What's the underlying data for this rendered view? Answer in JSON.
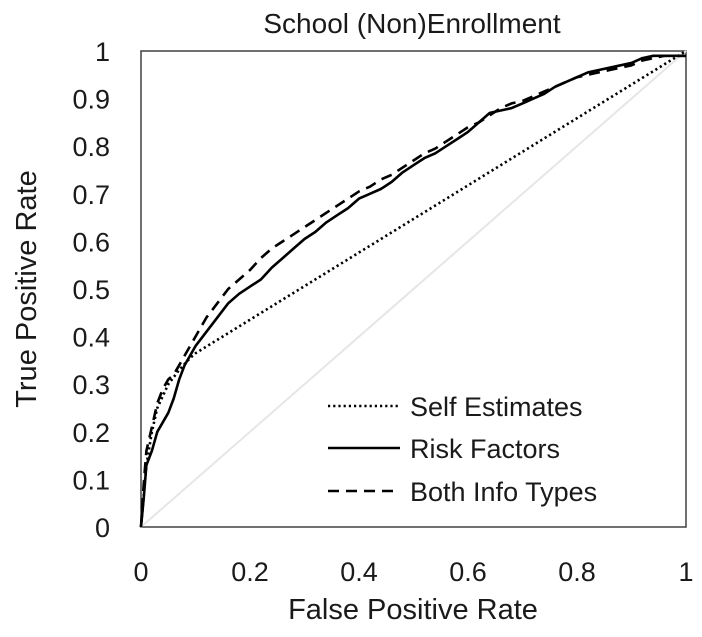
{
  "chart_data": {
    "type": "line",
    "title": "School (Non)Enrollment",
    "xlabel": "False Positive Rate",
    "ylabel": "True Positive Rate",
    "xlim": [
      0,
      1
    ],
    "ylim": [
      0,
      1
    ],
    "grid": false,
    "legend_position": "bottom-right",
    "x_ticks": [
      "0",
      "0.2",
      "0.4",
      "0.6",
      "0.8",
      "1"
    ],
    "y_ticks": [
      "0",
      "0.1",
      "0.2",
      "0.3",
      "0.4",
      "0.5",
      "0.6",
      "0.7",
      "0.8",
      "0.9",
      "1"
    ],
    "reference_line": {
      "x": [
        0,
        1
      ],
      "y": [
        0,
        1
      ],
      "color": "#e6e6e6"
    },
    "series": [
      {
        "name": "Self Estimates",
        "style": "dotted",
        "color": "#000000",
        "x": [
          0,
          0.01,
          0.02,
          0.03,
          0.05,
          0.07,
          0.09,
          0.1,
          1.0
        ],
        "y": [
          0,
          0.13,
          0.2,
          0.25,
          0.3,
          0.33,
          0.355,
          0.365,
          1.0
        ]
      },
      {
        "name": "Risk Factors",
        "style": "solid",
        "color": "#000000",
        "x": [
          0,
          0.005,
          0.01,
          0.02,
          0.03,
          0.04,
          0.05,
          0.06,
          0.07,
          0.08,
          0.09,
          0.1,
          0.12,
          0.14,
          0.16,
          0.18,
          0.2,
          0.22,
          0.24,
          0.26,
          0.28,
          0.3,
          0.32,
          0.34,
          0.36,
          0.38,
          0.4,
          0.42,
          0.44,
          0.46,
          0.48,
          0.5,
          0.52,
          0.54,
          0.56,
          0.58,
          0.6,
          0.62,
          0.64,
          0.66,
          0.68,
          0.7,
          0.72,
          0.74,
          0.76,
          0.78,
          0.8,
          0.82,
          0.84,
          0.86,
          0.88,
          0.9,
          0.92,
          0.94,
          0.96,
          0.97,
          1.0
        ],
        "y": [
          0,
          0.06,
          0.13,
          0.16,
          0.2,
          0.22,
          0.24,
          0.27,
          0.31,
          0.34,
          0.36,
          0.38,
          0.41,
          0.44,
          0.47,
          0.49,
          0.505,
          0.52,
          0.545,
          0.565,
          0.585,
          0.605,
          0.62,
          0.64,
          0.655,
          0.67,
          0.69,
          0.7,
          0.71,
          0.725,
          0.745,
          0.76,
          0.775,
          0.785,
          0.8,
          0.815,
          0.83,
          0.85,
          0.87,
          0.875,
          0.88,
          0.89,
          0.9,
          0.91,
          0.925,
          0.935,
          0.945,
          0.955,
          0.96,
          0.965,
          0.97,
          0.975,
          0.985,
          0.99,
          0.99,
          0.99,
          0.99
        ]
      },
      {
        "name": "Both Info Types",
        "style": "dashed",
        "color": "#000000",
        "x": [
          0,
          0.005,
          0.01,
          0.02,
          0.03,
          0.04,
          0.05,
          0.06,
          0.07,
          0.08,
          0.09,
          0.1,
          0.12,
          0.14,
          0.16,
          0.18,
          0.2,
          0.22,
          0.24,
          0.26,
          0.28,
          0.3,
          0.32,
          0.34,
          0.36,
          0.38,
          0.4,
          0.42,
          0.44,
          0.46,
          0.48,
          0.5,
          0.52,
          0.54,
          0.56,
          0.58,
          0.6,
          0.62,
          0.64,
          0.66,
          0.68,
          0.7,
          0.72,
          0.74,
          0.76,
          0.78,
          0.8,
          0.82,
          0.84,
          0.86,
          0.88,
          0.9,
          0.92,
          0.94,
          0.96,
          0.97,
          1.0
        ],
        "y": [
          0,
          0.09,
          0.16,
          0.21,
          0.26,
          0.29,
          0.31,
          0.32,
          0.34,
          0.36,
          0.38,
          0.4,
          0.44,
          0.47,
          0.5,
          0.52,
          0.54,
          0.565,
          0.585,
          0.6,
          0.615,
          0.63,
          0.645,
          0.66,
          0.675,
          0.69,
          0.705,
          0.715,
          0.73,
          0.74,
          0.755,
          0.77,
          0.785,
          0.795,
          0.81,
          0.825,
          0.84,
          0.85,
          0.865,
          0.88,
          0.89,
          0.895,
          0.905,
          0.915,
          0.925,
          0.935,
          0.945,
          0.95,
          0.955,
          0.96,
          0.965,
          0.97,
          0.98,
          0.985,
          0.99,
          0.99,
          0.99
        ]
      }
    ]
  }
}
